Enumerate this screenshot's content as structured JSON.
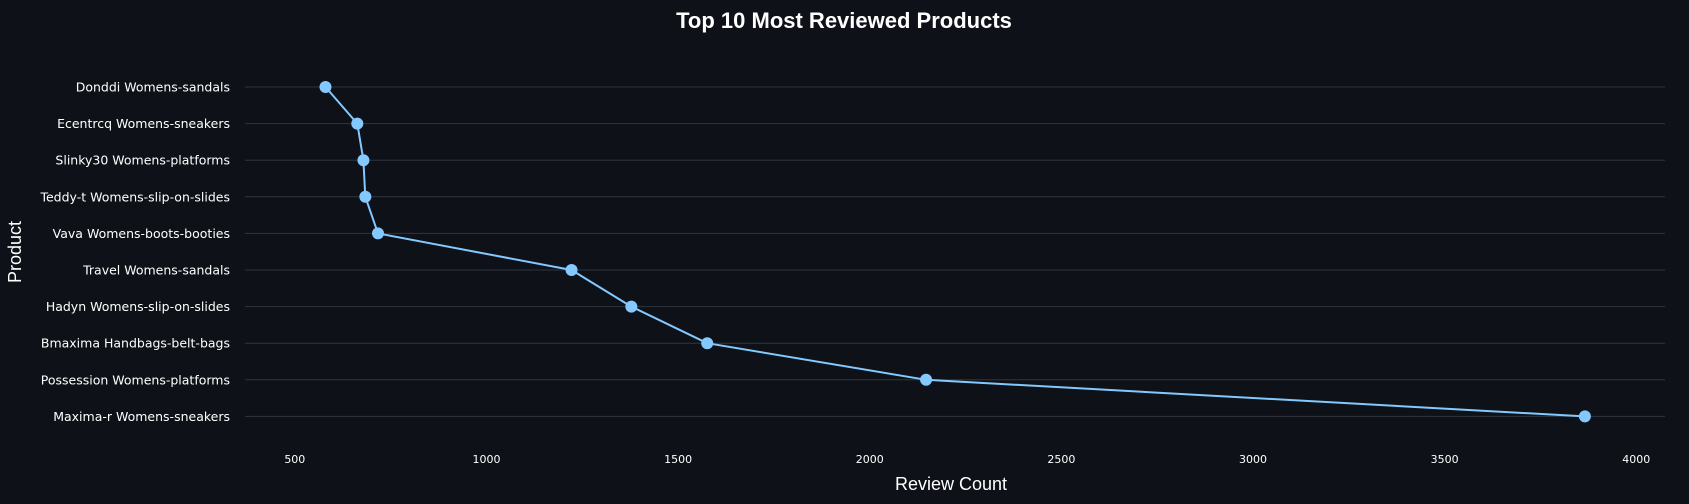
{
  "chart_data": {
    "type": "line",
    "title": "Top 10 Most Reviewed Products",
    "xlabel": "Review Count",
    "ylabel": "Product",
    "xlim": [
      370,
      4075
    ],
    "xticks": [
      500,
      1000,
      1500,
      2000,
      2500,
      3000,
      3500,
      4000
    ],
    "grid": "horizontal",
    "colors": {
      "background": "#0e1117",
      "series": "#83c9ff",
      "grid": "#2f3440",
      "text": "#ffffff"
    },
    "categories": [
      "Donddi Womens-sandals",
      "Ecentrcq Womens-sneakers",
      "Slinky30 Womens-platforms",
      "Teddy-t Womens-slip-on-slides",
      "Vava Womens-boots-booties",
      "Travel Womens-sandals",
      "Hadyn Womens-slip-on-slides",
      "Bmaxima Handbags-belt-bags",
      "Possession Womens-platforms",
      "Maxima-r Womens-sneakers"
    ],
    "values": [
      580,
      663,
      679,
      684,
      717,
      1222,
      1378,
      1576,
      2147,
      3866
    ]
  }
}
